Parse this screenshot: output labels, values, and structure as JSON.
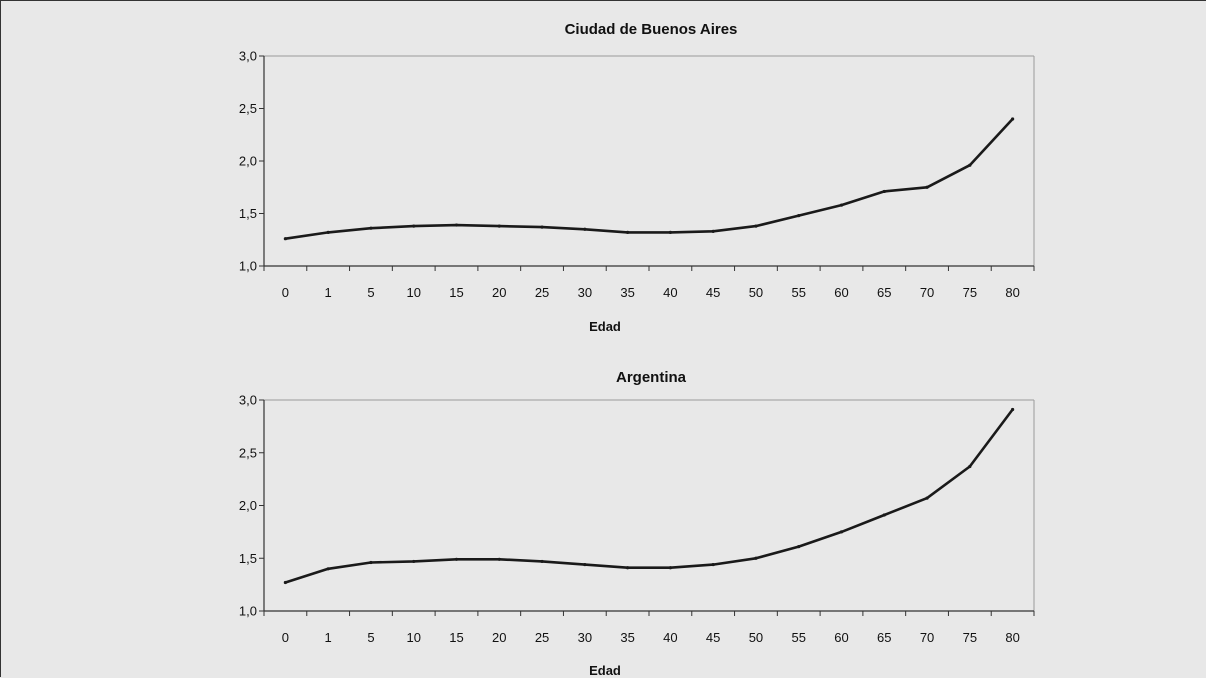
{
  "chart_data": [
    {
      "type": "line",
      "title": "Ciudad de Buenos Aires",
      "xlabel": "Edad",
      "ylabel": "",
      "categories": [
        "0",
        "1",
        "5",
        "10",
        "15",
        "20",
        "25",
        "30",
        "35",
        "40",
        "45",
        "50",
        "55",
        "60",
        "65",
        "70",
        "75",
        "80"
      ],
      "y_tick_labels": [
        "1,0",
        "1,5",
        "2,0",
        "2,5",
        "3,0"
      ],
      "ylim": [
        1.0,
        3.0
      ],
      "grid": false,
      "series": [
        {
          "values": [
            1.26,
            1.32,
            1.36,
            1.38,
            1.39,
            1.38,
            1.37,
            1.35,
            1.32,
            1.32,
            1.33,
            1.38,
            1.48,
            1.58,
            1.71,
            1.75,
            1.96,
            2.4
          ]
        }
      ]
    },
    {
      "type": "line",
      "title": "Argentina",
      "xlabel": "Edad",
      "ylabel": "",
      "categories": [
        "0",
        "1",
        "5",
        "10",
        "15",
        "20",
        "25",
        "30",
        "35",
        "40",
        "45",
        "50",
        "55",
        "60",
        "65",
        "70",
        "75",
        "80"
      ],
      "y_tick_labels": [
        "1,0",
        "1,5",
        "2,0",
        "2,5",
        "3,0"
      ],
      "ylim": [
        1.0,
        3.0
      ],
      "grid": false,
      "series": [
        {
          "values": [
            1.27,
            1.4,
            1.46,
            1.47,
            1.49,
            1.49,
            1.47,
            1.44,
            1.41,
            1.41,
            1.44,
            1.5,
            1.61,
            1.75,
            1.91,
            2.07,
            2.37,
            2.91
          ]
        }
      ]
    }
  ],
  "colors": {
    "background": "#e8e8e8",
    "line": "#1a1a1a",
    "axis": "#333333"
  }
}
